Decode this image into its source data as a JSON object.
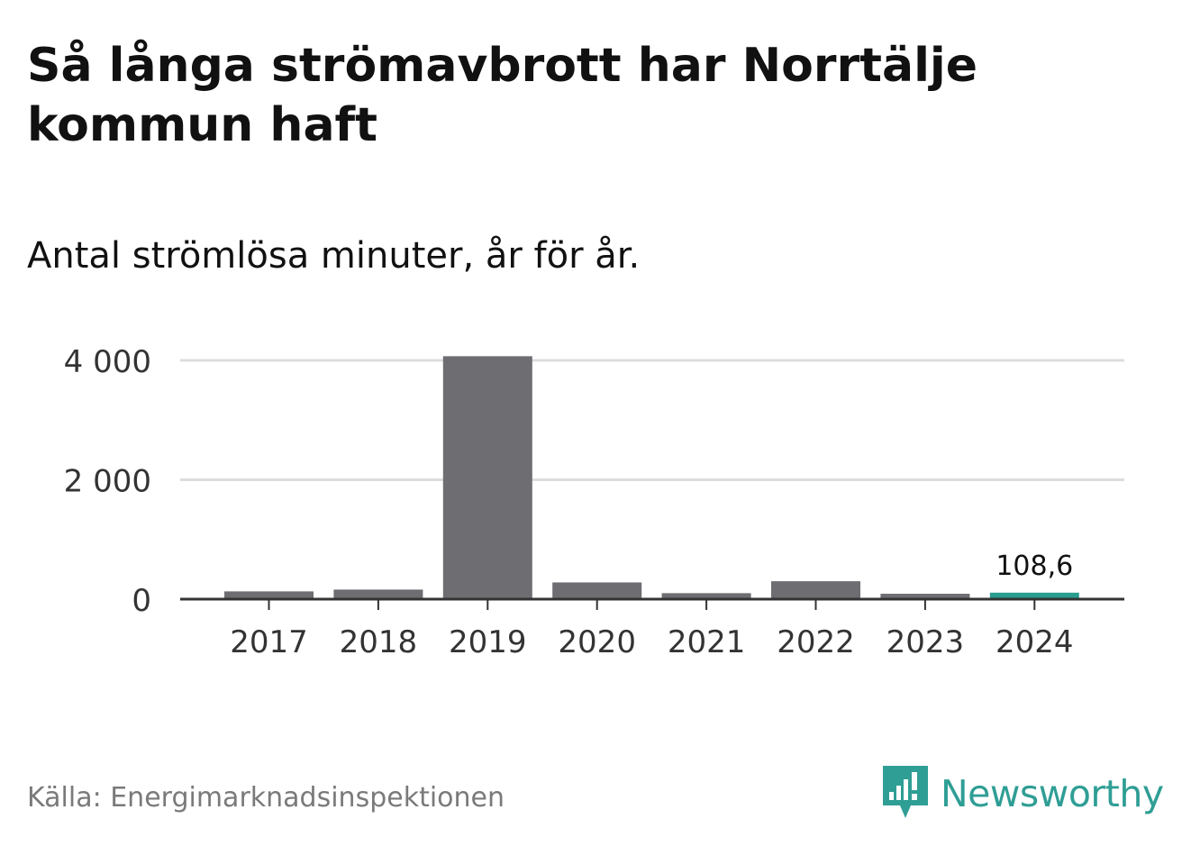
{
  "title": "Så långa strömavbrott har Norrtälje kommun haft",
  "subtitle": "Antal strömlösa minuter, år för år.",
  "source": "Källa: Energimarknadsinspektionen",
  "brand": {
    "name": "Newsworthy",
    "icon": "newsworthy-logo-icon",
    "color": "#2f9e95"
  },
  "chart_data": {
    "type": "bar",
    "categories": [
      "2017",
      "2018",
      "2019",
      "2020",
      "2021",
      "2022",
      "2023",
      "2024"
    ],
    "values": [
      130,
      160,
      4070,
      280,
      100,
      300,
      90,
      108.6
    ],
    "ylim": [
      0,
      4000
    ],
    "yticks": [
      0,
      2000,
      4000
    ],
    "ytick_labels": [
      "0",
      "2 000",
      "4 000"
    ],
    "grid": true,
    "bar_color": "#6e6d72",
    "highlight_color": "#2a9d8f",
    "highlight_index": 7,
    "annotation": {
      "index": 7,
      "text": "108,6"
    }
  }
}
